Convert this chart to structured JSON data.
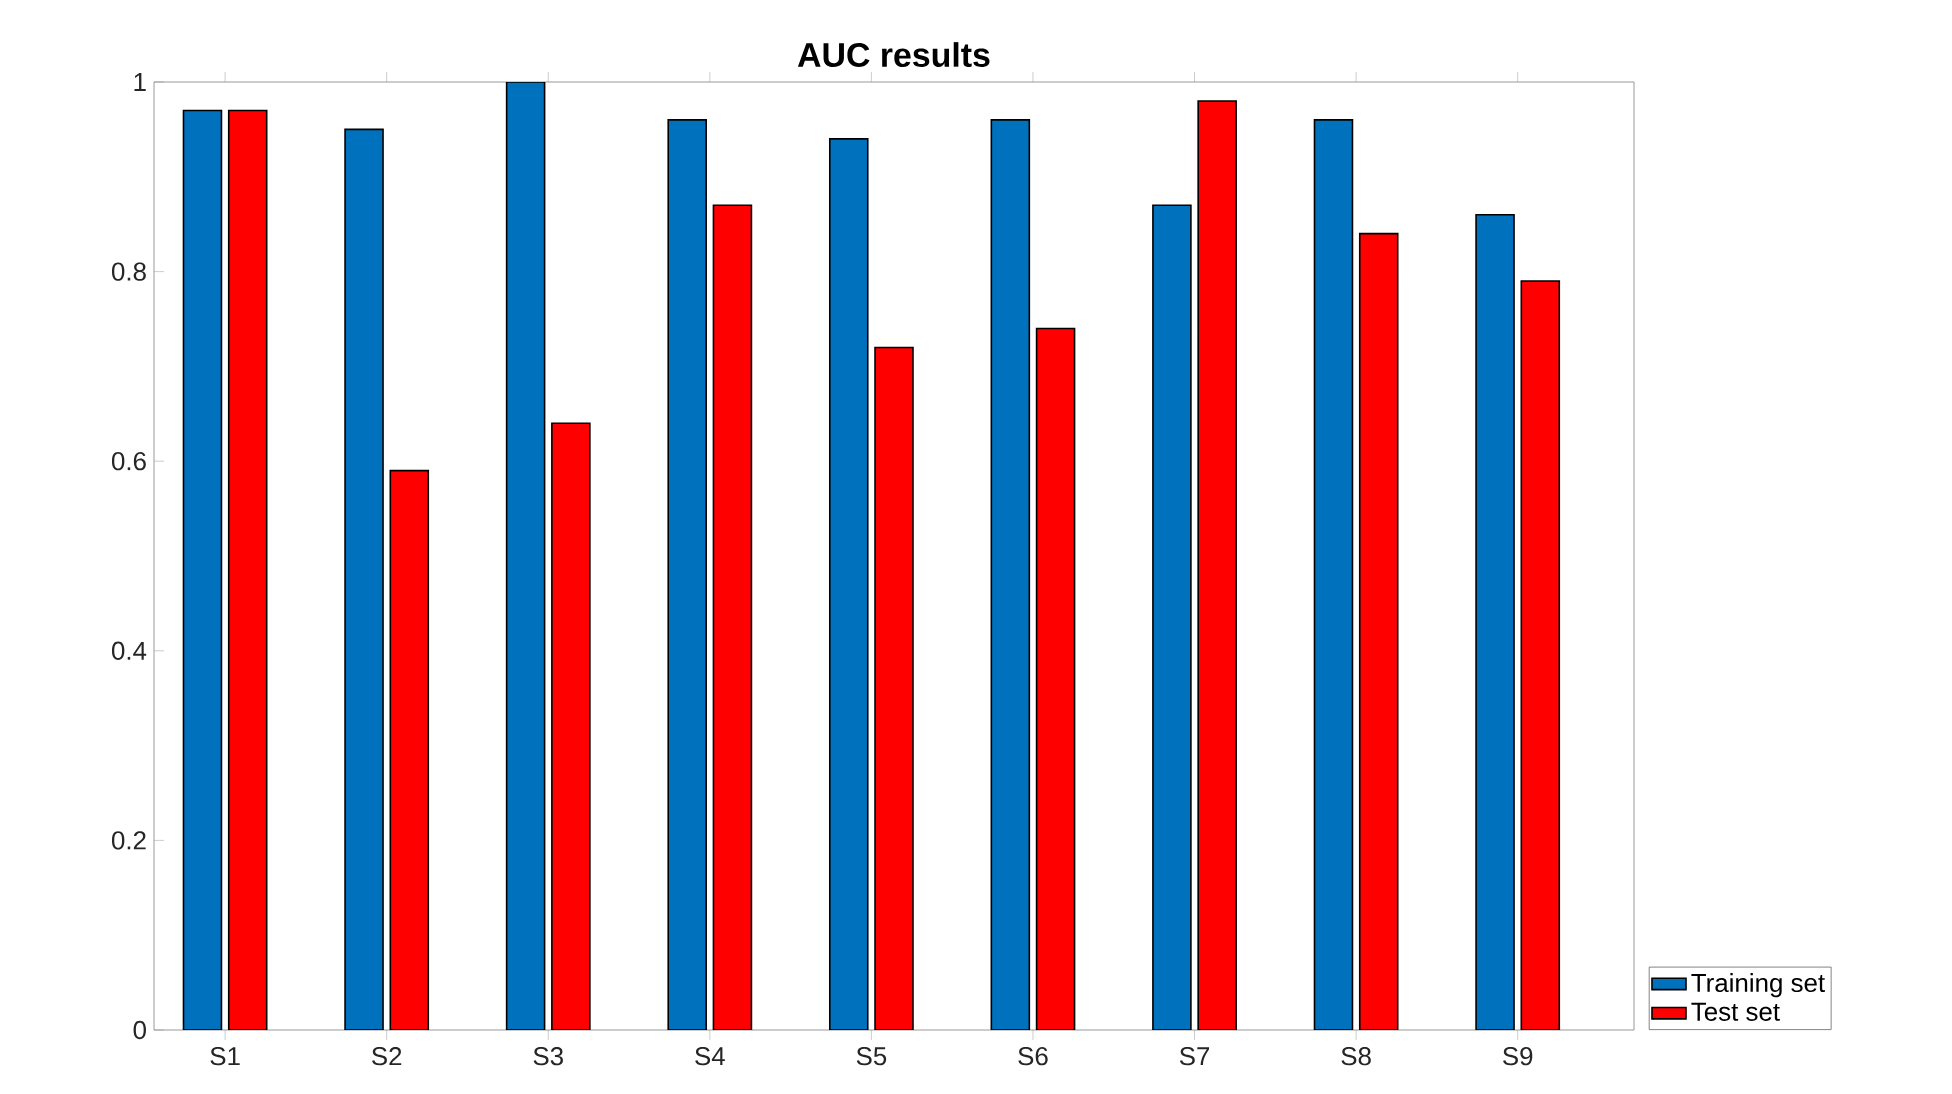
{
  "chart_data": {
    "type": "bar",
    "title": "AUC results",
    "categories": [
      "S1",
      "S2",
      "S3",
      "S4",
      "S5",
      "S6",
      "S7",
      "S8",
      "S9"
    ],
    "series": [
      {
        "name": "Training set",
        "color": "#0072bd",
        "values": [
          0.97,
          0.95,
          1.0,
          0.96,
          0.94,
          0.96,
          0.87,
          0.96,
          0.86
        ]
      },
      {
        "name": "Test set",
        "color": "#ff0000",
        "values": [
          0.97,
          0.59,
          0.64,
          0.87,
          0.72,
          0.74,
          0.98,
          0.84,
          0.79
        ]
      }
    ],
    "ylim": [
      0,
      1
    ],
    "yticks": [
      0,
      0.2,
      0.4,
      0.6,
      0.8,
      1
    ],
    "grid": false,
    "legend": "bottom right"
  }
}
